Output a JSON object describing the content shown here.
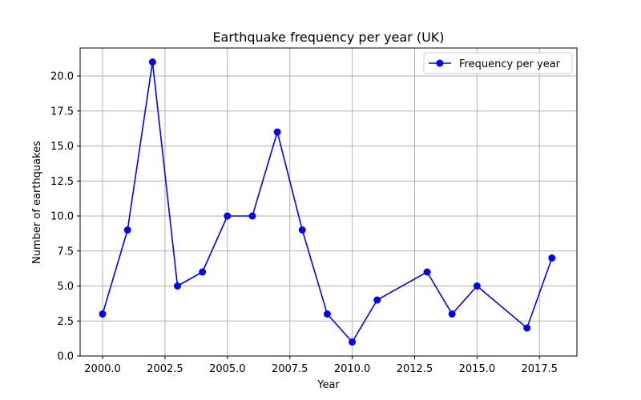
{
  "chart_data": {
    "type": "line",
    "title": "Earthquake frequency per year (UK)",
    "xlabel": "Year",
    "ylabel": "Number of earthquakes",
    "xlim": [
      1999.1,
      2019.0
    ],
    "ylim": [
      0,
      22
    ],
    "xticks": [
      2000,
      2002.5,
      2005,
      2007.5,
      2010,
      2012.5,
      2015,
      2017.5
    ],
    "xtick_labels": [
      "2000.0",
      "2002.5",
      "2005.0",
      "2007.5",
      "2010.0",
      "2012.5",
      "2015.0",
      "2017.5"
    ],
    "yticks": [
      0,
      2.5,
      5,
      7.5,
      10,
      12.5,
      15,
      17.5,
      20
    ],
    "ytick_labels": [
      "0.0",
      "2.5",
      "5.0",
      "7.5",
      "10.0",
      "12.5",
      "15.0",
      "17.5",
      "20.0"
    ],
    "grid": true,
    "legend_position": "top-right",
    "series": [
      {
        "name": "Frequency per year",
        "color": "#0000ff",
        "marker": "circle",
        "x": [
          2000,
          2001,
          2002,
          2003,
          2004,
          2005,
          2006,
          2007,
          2008,
          2009,
          2010,
          2011,
          2013,
          2014,
          2015,
          2017,
          2018
        ],
        "y": [
          3,
          9,
          21,
          5,
          6,
          10,
          10,
          16,
          9,
          3,
          1,
          4,
          6,
          3,
          5,
          2,
          7
        ]
      }
    ]
  }
}
